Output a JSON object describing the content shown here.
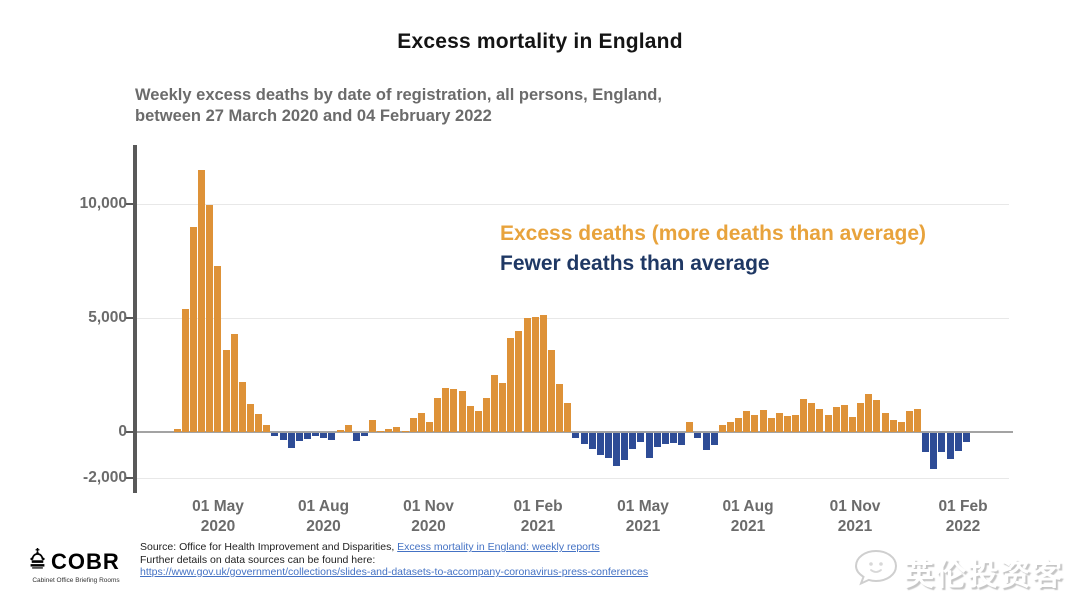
{
  "title": "Excess mortality in England",
  "subtitle": "Weekly excess deaths by date of registration, all persons, England,\nbetween 27 March 2020 and 04 February 2022",
  "legend": {
    "excess_label": "Excess deaths (more deaths than average)",
    "fewer_label": "Fewer deaths than average",
    "excess_color": "#E8A33C",
    "fewer_color": "#1F3864"
  },
  "chart_data": {
    "type": "bar",
    "title": "Excess mortality in England",
    "x_start_label": "27 March 2020",
    "x_end_label": "04 February 2022",
    "n_weeks": 98,
    "x_tick_labels": [
      [
        "01 May",
        "2020"
      ],
      [
        "01 Aug",
        "2020"
      ],
      [
        "01 Nov",
        "2020"
      ],
      [
        "01 Feb",
        "2021"
      ],
      [
        "01 May",
        "2021"
      ],
      [
        "01 Aug",
        "2021"
      ],
      [
        "01 Nov",
        "2021"
      ],
      [
        "01 Feb",
        "2022"
      ]
    ],
    "y_ticks": [
      {
        "value": 10000,
        "label": "10,000"
      },
      {
        "value": 5000,
        "label": "5,000"
      },
      {
        "value": 0,
        "label": "0"
      },
      {
        "value": -2000,
        "label": "-2,000"
      }
    ],
    "ylim": [
      -2600,
      12600
    ],
    "grid": true,
    "positive_color": "#DE9238",
    "negative_color": "#2E4C96",
    "series": [
      {
        "name": "Weekly excess deaths (positive = more deaths than average, negative = fewer)",
        "values": [
          150,
          5400,
          9000,
          11500,
          9950,
          7300,
          3600,
          4300,
          2200,
          1250,
          800,
          300,
          -150,
          -300,
          -650,
          -350,
          -250,
          -150,
          -200,
          -300,
          100,
          300,
          -370,
          -150,
          520,
          50,
          120,
          220,
          50,
          600,
          820,
          450,
          1490,
          1940,
          1865,
          1800,
          1120,
          900,
          1490,
          2500,
          2170,
          4110,
          4440,
          5010,
          5030,
          5110,
          3590,
          2090,
          1270,
          -200,
          -500,
          -700,
          -950,
          -1100,
          -1450,
          -1200,
          -700,
          -400,
          -1090,
          -600,
          -500,
          -450,
          -520,
          420,
          -200,
          -750,
          -520,
          300,
          450,
          600,
          900,
          750,
          950,
          600,
          825,
          700,
          750,
          1450,
          1275,
          1000,
          750,
          1090,
          1200,
          650,
          1275,
          1680,
          1400,
          825,
          525,
          450,
          900,
          1000,
          -850,
          -1600,
          -850,
          -1150,
          -800,
          -400
        ]
      }
    ]
  },
  "footer": {
    "logo": {
      "text": "COBR",
      "subtext": "Cabinet Office Briefing Rooms"
    },
    "source_prefix": "Source: Office for Health Improvement and Disparities, ",
    "source_link": "Excess mortality in England: weekly reports",
    "details_text": "Further details on data sources can be found here:",
    "details_link": "https://www.gov.uk/government/collections/slides-and-datasets-to-accompany-coronavirus-press-conferences"
  },
  "watermark": {
    "text": "英伦投资客"
  }
}
